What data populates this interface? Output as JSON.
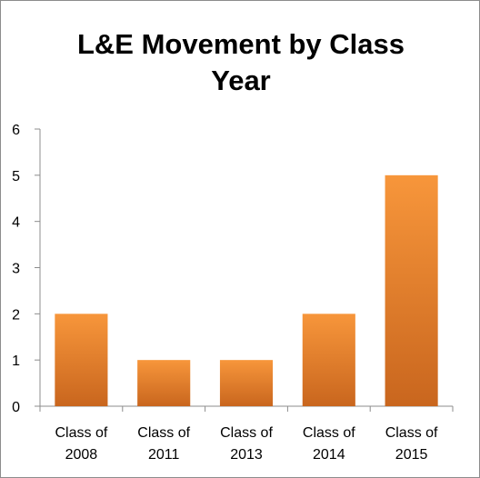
{
  "chart_data": {
    "type": "bar",
    "title_lines": [
      "L&E Movement by Class",
      "Year"
    ],
    "categories": [
      [
        "Class of",
        "2008"
      ],
      [
        "Class of",
        "2011"
      ],
      [
        "Class of",
        "2013"
      ],
      [
        "Class of",
        "2014"
      ],
      [
        "Class of",
        "2015"
      ]
    ],
    "values": [
      2,
      1,
      1,
      2,
      5
    ],
    "ylim": [
      0,
      6
    ],
    "yticks": [
      0,
      1,
      2,
      3,
      4,
      5,
      6
    ],
    "grid": false,
    "legend": "none",
    "bar_color_top": "#F7963B",
    "bar_color_bottom": "#C9661E"
  }
}
